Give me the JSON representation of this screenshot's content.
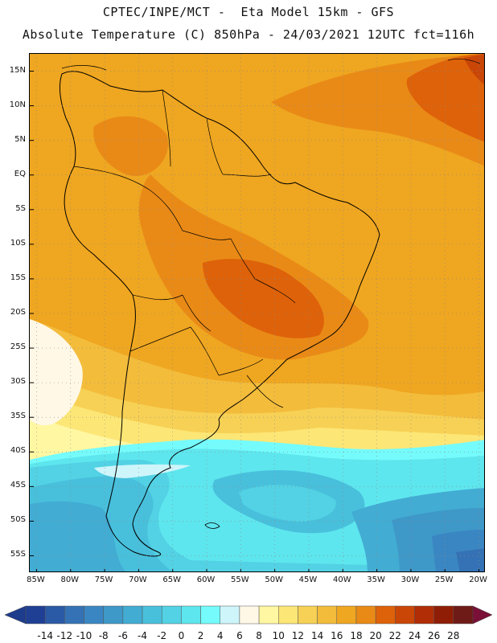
{
  "title": {
    "line1": "CPTEC/INPE/MCT -  Eta Model 15km - GFS",
    "line2": "Absolute Temperature (C) 850hPa - 24/03/2021 12UTC fct=116h"
  },
  "map": {
    "lon_range": [
      -86,
      -19
    ],
    "lat_range": [
      17.5,
      -57.5
    ],
    "lat_ticks": [
      {
        "value": 15,
        "label": "15N"
      },
      {
        "value": 10,
        "label": "10N"
      },
      {
        "value": 5,
        "label": "5N"
      },
      {
        "value": 0,
        "label": "EQ"
      },
      {
        "value": -5,
        "label": "5S"
      },
      {
        "value": -10,
        "label": "10S"
      },
      {
        "value": -15,
        "label": "15S"
      },
      {
        "value": -20,
        "label": "20S"
      },
      {
        "value": -25,
        "label": "25S"
      },
      {
        "value": -30,
        "label": "30S"
      },
      {
        "value": -35,
        "label": "35S"
      },
      {
        "value": -40,
        "label": "40S"
      },
      {
        "value": -45,
        "label": "45S"
      },
      {
        "value": -50,
        "label": "50S"
      },
      {
        "value": -55,
        "label": "55S"
      }
    ],
    "lon_ticks": [
      {
        "value": -85,
        "label": "85W"
      },
      {
        "value": -80,
        "label": "80W"
      },
      {
        "value": -75,
        "label": "75W"
      },
      {
        "value": -70,
        "label": "70W"
      },
      {
        "value": -65,
        "label": "65W"
      },
      {
        "value": -60,
        "label": "60W"
      },
      {
        "value": -55,
        "label": "55W"
      },
      {
        "value": -50,
        "label": "50W"
      },
      {
        "value": -45,
        "label": "45W"
      },
      {
        "value": -40,
        "label": "40W"
      },
      {
        "value": -35,
        "label": "35W"
      },
      {
        "value": -30,
        "label": "30W"
      },
      {
        "value": -25,
        "label": "25W"
      },
      {
        "value": -20,
        "label": "20W"
      }
    ]
  },
  "colorbar": {
    "labels": [
      "-14",
      "-12",
      "-10",
      "-8",
      "-6",
      "-4",
      "-2",
      "0",
      "2",
      "4",
      "6",
      "8",
      "10",
      "12",
      "14",
      "16",
      "18",
      "20",
      "22",
      "24",
      "26",
      "28"
    ],
    "colors": [
      "#1f3f94",
      "#2a5aa5",
      "#3472b5",
      "#3a86c2",
      "#3e98c8",
      "#42acd3",
      "#48c0dc",
      "#52d2e4",
      "#5ee6ee",
      "#75fbfb",
      "#cdf5fa",
      "#fff8e6",
      "#fff7a2",
      "#fce676",
      "#f7d155",
      "#f3bc3b",
      "#efa620",
      "#e98a17",
      "#de6209",
      "#c94607",
      "#b02d06",
      "#8f1d05",
      "#6e1a16"
    ],
    "low_arrow_color": "#1e3c8c",
    "high_arrow_color": "#7a1038"
  }
}
